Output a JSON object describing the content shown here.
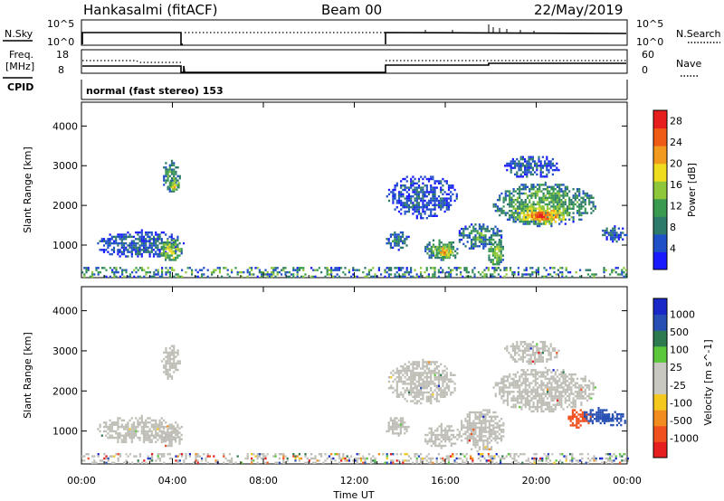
{
  "header": {
    "station": "Hankasalmi (fitACF)",
    "beam": "Beam 00",
    "date": "22/May/2019"
  },
  "nsky_panel": {
    "left_label": "N.Sky",
    "left_ticks": [
      "10^5",
      "10^0"
    ],
    "right_label": "N.Search",
    "right_ticks": [
      "10^5",
      "10^0"
    ]
  },
  "freq_panel": {
    "left_label_line1": "Freq.",
    "left_label_line2": "[MHz]",
    "left_ticks": [
      "18",
      "8"
    ],
    "right_label": "Nave",
    "right_ticks": [
      "60",
      "0"
    ]
  },
  "cpid": {
    "label": "CPID",
    "value": "normal (fast stereo) 153"
  },
  "colors": {
    "power_scale": [
      "#1a1aff",
      "#2050c8",
      "#2e7a6a",
      "#3a9a50",
      "#8ec83a",
      "#f0dc1e",
      "#f29a1e",
      "#ef5a14",
      "#e61e1e"
    ],
    "velocity_scale": [
      "#e61e1e",
      "#f0501e",
      "#f28c1e",
      "#f5c81e",
      "#c8c8c0",
      "#c8c8c0",
      "#5ac83a",
      "#2e7a50",
      "#2850b4",
      "#1a28c8"
    ],
    "ground_scatter": "#bebeb6"
  },
  "chart_data": [
    {
      "type": "heatmap",
      "title": "Power",
      "ylabel": "Slant Range [km]",
      "xlabel": "",
      "x_ticks": [
        "00:00",
        "04:00",
        "08:00",
        "12:00",
        "16:00",
        "20:00",
        "00:00"
      ],
      "x_range_hours": [
        0,
        24
      ],
      "y_ticks": [
        1000,
        2000,
        3000,
        4000
      ],
      "ylim": [
        180,
        4600
      ],
      "colorbar_label": "Power [dB]",
      "colorbar_ticks": [
        4,
        8,
        12,
        16,
        20,
        24,
        28
      ],
      "clim": [
        0,
        30
      ],
      "regions": [
        {
          "t0": 0.6,
          "t1": 4.5,
          "r0": 700,
          "r1": 1400,
          "value": 6
        },
        {
          "t0": 3.4,
          "t1": 4.4,
          "r0": 600,
          "r1": 1200,
          "value": 16
        },
        {
          "t0": 3.5,
          "t1": 4.3,
          "r0": 2300,
          "r1": 3200,
          "value": 10
        },
        {
          "t0": 3.8,
          "t1": 4.3,
          "r0": 2400,
          "r1": 2700,
          "value": 18
        },
        {
          "t0": 13.3,
          "t1": 14.4,
          "r0": 900,
          "r1": 1400,
          "value": 8
        },
        {
          "t0": 15.0,
          "t1": 16.6,
          "r0": 600,
          "r1": 1200,
          "value": 12
        },
        {
          "t0": 15.5,
          "t1": 16.3,
          "r0": 700,
          "r1": 1000,
          "value": 20
        },
        {
          "t0": 16.5,
          "t1": 18.5,
          "r0": 900,
          "r1": 1600,
          "value": 10
        },
        {
          "t0": 17.8,
          "t1": 18.6,
          "r0": 500,
          "r1": 1200,
          "value": 14
        },
        {
          "t0": 13.4,
          "t1": 16.5,
          "r0": 1700,
          "r1": 2800,
          "value": 5
        },
        {
          "t0": 18.0,
          "t1": 22.6,
          "r0": 1500,
          "r1": 2600,
          "value": 12
        },
        {
          "t0": 18.8,
          "t1": 21.6,
          "r0": 1550,
          "r1": 2000,
          "value": 22
        },
        {
          "t0": 19.6,
          "t1": 20.8,
          "r0": 1600,
          "r1": 1900,
          "value": 26
        },
        {
          "t0": 18.5,
          "t1": 21.0,
          "r0": 2700,
          "r1": 3300,
          "value": 6
        },
        {
          "t0": 22.8,
          "t1": 24.0,
          "r0": 1100,
          "r1": 1500,
          "value": 6
        },
        {
          "t0": 0.0,
          "t1": 24.0,
          "r0": 200,
          "r1": 450,
          "value": 8
        }
      ]
    },
    {
      "type": "heatmap",
      "title": "Velocity",
      "ylabel": "Slant Range [km]",
      "xlabel": "Time UT",
      "x_ticks": [
        "00:00",
        "04:00",
        "08:00",
        "12:00",
        "16:00",
        "20:00",
        "00:00"
      ],
      "x_range_hours": [
        0,
        24
      ],
      "y_ticks": [
        1000,
        2000,
        3000,
        4000
      ],
      "ylim": [
        180,
        4600
      ],
      "colorbar_label": "Velocity [m s^-1]",
      "colorbar_ticks": [
        1000,
        500,
        100,
        25,
        -25,
        -100,
        -500,
        -1000
      ],
      "regions": [
        {
          "t0": 0.6,
          "t1": 4.5,
          "r0": 700,
          "r1": 1400,
          "value": "ground"
        },
        {
          "t0": 3.4,
          "t1": 4.4,
          "r0": 600,
          "r1": 1200,
          "value": "ground"
        },
        {
          "t0": 3.5,
          "t1": 4.3,
          "r0": 2300,
          "r1": 3200,
          "value": "ground"
        },
        {
          "t0": 13.3,
          "t1": 14.4,
          "r0": 900,
          "r1": 1400,
          "value": "ground"
        },
        {
          "t0": 15.0,
          "t1": 16.6,
          "r0": 600,
          "r1": 1200,
          "value": "ground"
        },
        {
          "t0": 16.5,
          "t1": 18.6,
          "r0": 500,
          "r1": 1600,
          "value": "ground"
        },
        {
          "t0": 13.4,
          "t1": 16.5,
          "r0": 1700,
          "r1": 2800,
          "value": "ground"
        },
        {
          "t0": 18.0,
          "t1": 22.6,
          "r0": 1500,
          "r1": 2600,
          "value": "ground"
        },
        {
          "t0": 18.5,
          "t1": 21.0,
          "r0": 2700,
          "r1": 3300,
          "value": "ground"
        },
        {
          "t0": 21.3,
          "t1": 22.4,
          "r0": 1100,
          "r1": 1600,
          "value": -300
        },
        {
          "t0": 22.0,
          "t1": 23.4,
          "r0": 1200,
          "r1": 1600,
          "value": 800
        },
        {
          "t0": 22.9,
          "t1": 24.0,
          "r0": 1150,
          "r1": 1500,
          "value": 600
        },
        {
          "t0": 0.0,
          "t1": 24.0,
          "r0": 200,
          "r1": 450,
          "value": "ground"
        }
      ]
    }
  ]
}
